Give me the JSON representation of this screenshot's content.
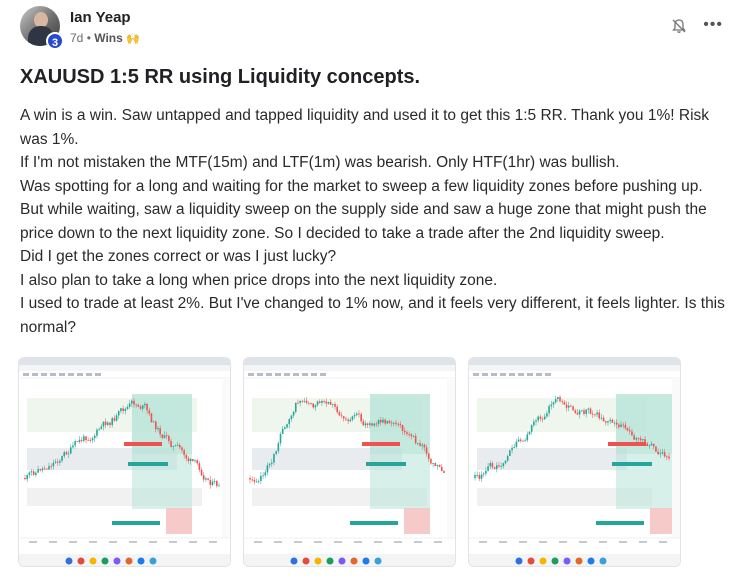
{
  "post": {
    "author": "Ian Yeap",
    "level": "3",
    "age": "7d",
    "separator": "•",
    "category": "Wins",
    "category_emoji": "🙌",
    "title": "XAUUSD 1:5 RR using Liquidity concepts.",
    "paragraphs": [
      "A win is a win. Saw untapped and tapped liquidity and used it to get this 1:5 RR. Thank you 1%! Risk was 1%.",
      "If I'm not mistaken the MTF(15m) and LTF(1m) was bearish. Only HTF(1hr) was bullish.",
      "Was spotting for a long and waiting for the market to sweep a few liquidity zones before pushing up.",
      "But while waiting, saw a liquidity sweep on the supply side and saw a huge zone that might push the price down to the next liquidity zone. So I decided to take a trade after the 2nd liquidity sweep.",
      "Did I get the zones correct or was I just lucky?",
      "I also plan to take a long when price drops into the next liquidity zone.",
      "I used to trade at least 2%. But I've changed to 1% now, and it feels very different, it feels lighter. Is this normal?"
    ]
  },
  "icons": {
    "notification": "bell-off-icon",
    "more": "more-options-icon"
  },
  "attachments": [
    {
      "name": "chart-screenshot-1"
    },
    {
      "name": "chart-screenshot-2"
    },
    {
      "name": "chart-screenshot-3"
    }
  ],
  "colors": {
    "badge": "#2b4acb",
    "candle_up": "#26a69a",
    "candle_down": "#ef5350",
    "target_zone": "#b7e4d7",
    "stop_zone": "#f6c4c4"
  }
}
